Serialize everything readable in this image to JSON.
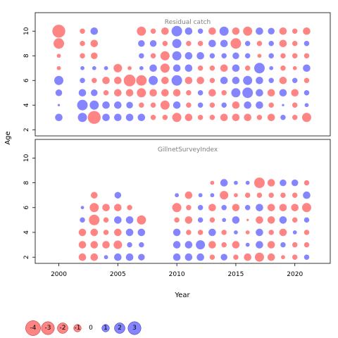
{
  "chart_data": {
    "type": "scatter",
    "subtype": "bubble-residual-plot",
    "xlabel": "Year",
    "ylabel": "Age",
    "xlim": [
      1998,
      2023
    ],
    "x_ticks": [
      2000,
      2005,
      2010,
      2015,
      2020
    ],
    "ylim": [
      1.5,
      11.5
    ],
    "y_ticks": [
      2,
      4,
      6,
      8,
      10
    ],
    "grid": false,
    "colors": {
      "positive": "#6666ff",
      "negative": "#ff6666"
    },
    "legend": {
      "placement": "bottom-left",
      "values": [
        -4,
        -3,
        -2,
        -1,
        0,
        1,
        2,
        3
      ],
      "labels": [
        "-4",
        "-3",
        "-2",
        "-1",
        "0",
        "1",
        "2",
        "3"
      ]
    },
    "panels": [
      {
        "title": "Residual catch",
        "years": [
          2000,
          2002,
          2003,
          2004,
          2005,
          2006,
          2007,
          2008,
          2009,
          2010,
          2011,
          2012,
          2013,
          2014,
          2015,
          2016,
          2017,
          2018,
          2019,
          2020,
          2021
        ],
        "ages": [
          3,
          4,
          5,
          6,
          7,
          8,
          9,
          10
        ],
        "residuals": {
          "3": [
            1.0,
            1.5,
            -3.0,
            1.0,
            1.0,
            1.0,
            1.0,
            -0.5,
            -0.5,
            -1.5,
            -1.0,
            -0.5,
            -0.5,
            -1.0,
            -1.0,
            -1.0,
            -0.5,
            -1.0,
            0.5,
            -0.5,
            -1.5
          ],
          "4": [
            0.1,
            2.0,
            1.5,
            1.0,
            1.0,
            0.8,
            -0.5,
            -0.5,
            -1.5,
            1.0,
            -0.5,
            0.5,
            -0.5,
            0.5,
            -1.0,
            1.0,
            1.0,
            -0.5,
            0.1,
            -0.5,
            0.3
          ],
          "5": [
            0.8,
            1.0,
            0.8,
            -0.5,
            -1.0,
            -1.0,
            -1.5,
            -1.0,
            -1.0,
            -1.0,
            -0.5,
            0.5,
            -1.0,
            -0.5,
            1.5,
            2.0,
            1.0,
            -1.0,
            1.0,
            -1.0,
            0.5
          ],
          "6": [
            1.5,
            0.5,
            -0.5,
            -1.0,
            -1.0,
            -2.5,
            -2.0,
            1.5,
            -1.0,
            2.0,
            -1.0,
            -1.0,
            -0.5,
            1.0,
            1.0,
            1.5,
            1.0,
            0.5,
            -1.0,
            0.5,
            -0.5
          ],
          "7": [
            -0.3,
            0.3,
            0.3,
            0.3,
            -1.3,
            -0.3,
            0.3,
            1.0,
            -1.5,
            1.0,
            1.0,
            -0.5,
            -0.5,
            -1.0,
            1.0,
            -0.5,
            2.0,
            0.3,
            -0.5,
            -0.3,
            1.0
          ],
          "8": [
            -0.3,
            -0.5,
            -0.8,
            null,
            null,
            null,
            0.5,
            -0.5,
            -1.5,
            1.5,
            1.0,
            1.0,
            0.5,
            0.5,
            0.8,
            0.5,
            -0.3,
            0.5,
            -0.5,
            -0.5,
            -0.5
          ],
          "9": [
            -2.0,
            -0.5,
            -1.0,
            null,
            null,
            null,
            0.8,
            0.8,
            -0.5,
            1.5,
            -0.5,
            -0.5,
            1.0,
            1.0,
            -2.0,
            0.5,
            -0.5,
            0.5,
            -1.0,
            -0.5,
            0.5
          ],
          "10": [
            -3.0,
            -0.5,
            1.0,
            null,
            null,
            null,
            -1.5,
            -0.5,
            -1.0,
            2.0,
            1.0,
            0.5,
            -1.0,
            1.5,
            -1.0,
            -1.5,
            1.0,
            0.8,
            -1.0,
            -0.5,
            -1.0
          ]
        }
      },
      {
        "title": "GillnetSurveyIndex",
        "years": [
          2002,
          2003,
          2004,
          2005,
          2006,
          2007,
          2010,
          2011,
          2012,
          2013,
          2014,
          2015,
          2016,
          2017,
          2018,
          2019,
          2020,
          2021
        ],
        "ages": [
          2,
          3,
          4,
          5,
          6,
          7,
          8
        ],
        "residuals": {
          "2": [
            -1.0,
            -1.0,
            0.3,
            1.0,
            1.0,
            0.8,
            1.0,
            1.0,
            1.0,
            -0.5,
            0.8,
            -0.5,
            -1.0,
            -1.5,
            -1.0,
            -0.3,
            -0.5,
            0.5
          ],
          "3": [
            -1.0,
            -1.0,
            -1.0,
            -1.3,
            0.5,
            0.5,
            1.0,
            1.0,
            1.5,
            -1.0,
            -0.5,
            -1.0,
            0.3,
            1.0,
            -1.0,
            0.5,
            -0.5,
            -0.5
          ],
          "4": [
            -1.0,
            -1.0,
            -0.5,
            -1.0,
            1.0,
            1.0,
            1.0,
            -0.5,
            -0.5,
            1.0,
            -0.5,
            0.3,
            -0.3,
            1.0,
            -0.5,
            -1.0,
            0.3,
            -0.5
          ],
          "5": [
            0.5,
            -2.0,
            -0.5,
            1.0,
            1.0,
            -1.5,
            -0.5,
            -1.0,
            0.5,
            -0.5,
            0.3,
            1.0,
            -0.1,
            -1.0,
            -1.0,
            1.0,
            -0.5,
            0.5
          ],
          "6": [
            0.2,
            -1.5,
            -1.0,
            -1.0,
            -0.5,
            null,
            -1.5,
            -0.5,
            0.5,
            -1.0,
            0.5,
            -1.0,
            0.5,
            1.0,
            -1.0,
            -1.0,
            -1.0,
            -1.5
          ],
          "7": [
            null,
            -0.8,
            null,
            0.8,
            null,
            null,
            0.3,
            -1.0,
            0.3,
            0.3,
            -1.3,
            -0.3,
            -0.5,
            -0.5,
            -0.5,
            -0.5,
            -0.5,
            1.0
          ],
          "8": [
            null,
            null,
            null,
            null,
            null,
            null,
            null,
            null,
            null,
            -0.3,
            1.0,
            0.3,
            0.3,
            -2.0,
            -1.0,
            0.8,
            0.8,
            -0.5
          ]
        }
      }
    ]
  }
}
